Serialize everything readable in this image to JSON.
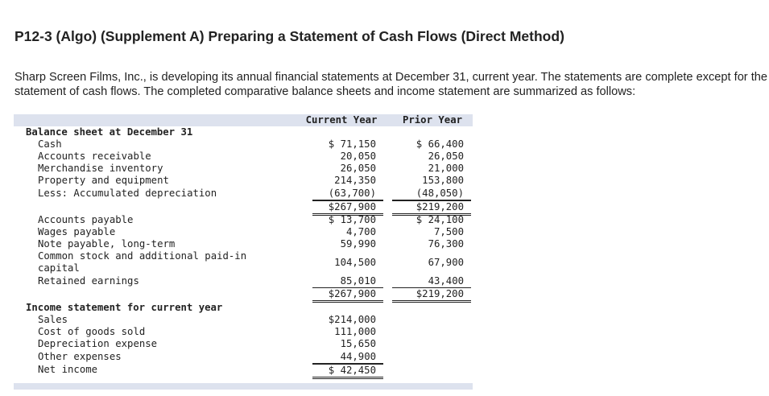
{
  "title": "P12-3 (Algo) (Supplement A) Preparing a Statement of Cash Flows (Direct Method)",
  "intro": "Sharp Screen Films, Inc., is developing its annual financial statements at December 31, current year. The statements are complete except for the statement of cash flows. The completed comparative balance sheets and income statement are summarized as follows:",
  "table": {
    "headers": [
      "Current Year",
      "Prior Year"
    ],
    "sections": [
      {
        "heading": "Balance sheet at December 31",
        "rows": [
          {
            "label": "Cash",
            "current": "$ 71,150",
            "prior": "$ 66,400"
          },
          {
            "label": "Accounts receivable",
            "current": "20,050",
            "prior": "26,050"
          },
          {
            "label": "Merchandise inventory",
            "current": "26,050",
            "prior": "21,000"
          },
          {
            "label": "Property and equipment",
            "current": "214,350",
            "prior": "153,800"
          },
          {
            "label": "Less: Accumulated depreciation",
            "current": "(63,700)",
            "prior": "(48,050)"
          },
          {
            "current": "$267,900",
            "prior": "$219,200"
          },
          {
            "label": "Accounts payable",
            "current": "$ 13,700",
            "prior": "$ 24,100"
          },
          {
            "label": "Wages payable",
            "current": "4,700",
            "prior": "7,500"
          },
          {
            "label": "Note payable, long-term",
            "current": "59,990",
            "prior": "76,300"
          },
          {
            "label": "Common stock and additional paid-in capital",
            "current": "104,500",
            "prior": "67,900"
          },
          {
            "label": "Retained earnings",
            "current": "85,010",
            "prior": "43,400"
          },
          {
            "current": "$267,900",
            "prior": "$219,200"
          }
        ]
      },
      {
        "heading": "Income statement for current year",
        "rows": [
          {
            "label": "Sales",
            "current": "$214,000"
          },
          {
            "label": "Cost of goods sold",
            "current": "111,000"
          },
          {
            "label": "Depreciation expense",
            "current": "15,650"
          },
          {
            "label": "Other expenses",
            "current": "44,900"
          },
          {
            "label": "Net income",
            "current": "$ 42,450"
          }
        ]
      }
    ]
  }
}
